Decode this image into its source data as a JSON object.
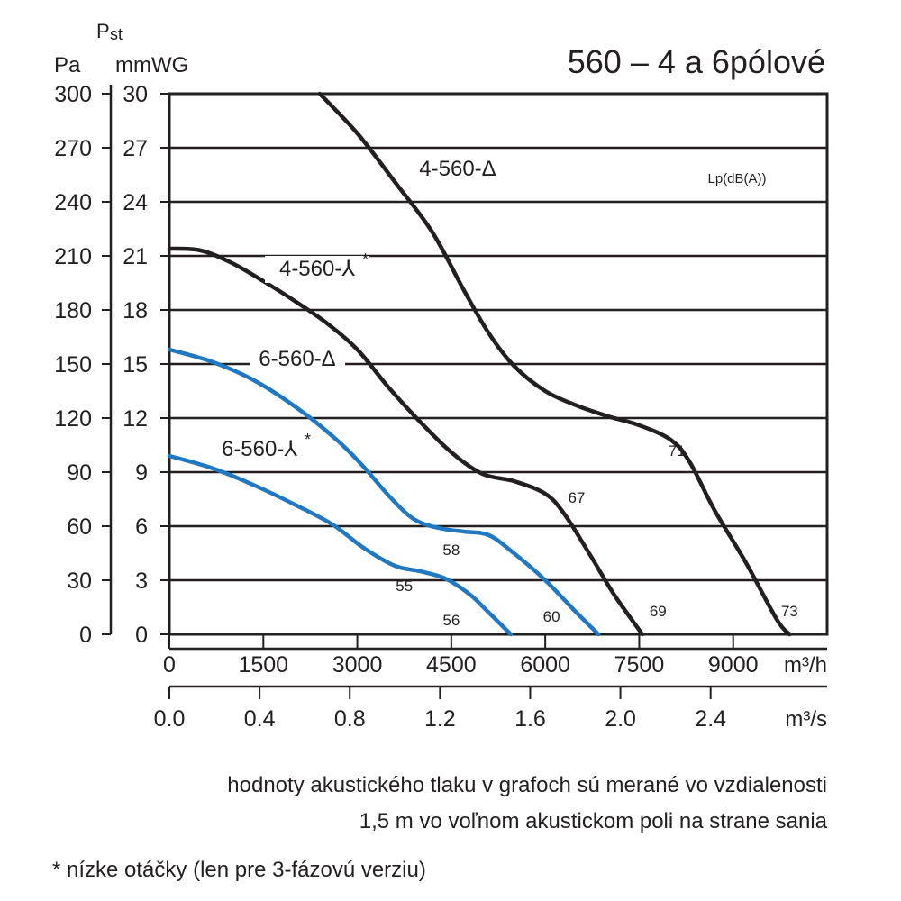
{
  "chart_data": {
    "type": "line",
    "title": "560 – 4 a 6pólové",
    "y_symbol_main": "P",
    "y_symbol_sub": "st",
    "y_left_unit": "Pa",
    "y_right_unit": "mmWG",
    "y_left_ticks": [
      "300",
      "270",
      "240",
      "210",
      "180",
      "150",
      "120",
      "90",
      "60",
      "30",
      "0"
    ],
    "y_right_ticks": [
      "30",
      "27",
      "24",
      "21",
      "18",
      "15",
      "12",
      "9",
      "6",
      "3",
      "0"
    ],
    "ylim_pa": [
      0,
      300
    ],
    "x1_unit": "m³/h",
    "x1_ticks": [
      "0",
      "1500",
      "3000",
      "4500",
      "6000",
      "7500",
      "9000"
    ],
    "xlim_m3h": [
      0,
      10500
    ],
    "x2_unit": "m³/s",
    "x2_ticks": [
      "0.0",
      "0.4",
      "0.8",
      "1.2",
      "1.6",
      "2.0",
      "2.4"
    ],
    "legend_title": "Lp(dB(A))",
    "grid": "horizontal",
    "colors": {
      "black_series": "#231f20",
      "blue_series": "#1f78c1"
    },
    "series": [
      {
        "name": "4-560-Δ",
        "color": "#231f20",
        "x": [
          2400,
          3000,
          3600,
          4200,
          4700,
          5100,
          5500,
          6000,
          6500,
          7000,
          7500,
          8000,
          8300,
          8700,
          9200,
          9700,
          9900
        ],
        "y": [
          300,
          278,
          251,
          223,
          191,
          167,
          149,
          135,
          127,
          121,
          116,
          108,
          96,
          69,
          40,
          8,
          0
        ],
        "annotations": [
          {
            "x": 8100,
            "y": 102,
            "text": "71"
          },
          {
            "x": 9900,
            "y": 13,
            "text": "73"
          }
        ]
      },
      {
        "name": "4-560-⅄",
        "sup": "*",
        "color": "#231f20",
        "x": [
          0,
          500,
          1000,
          1500,
          2000,
          2500,
          3000,
          3500,
          4000,
          4500,
          5000,
          5500,
          6000,
          6300,
          6700,
          7100,
          7550
        ],
        "y": [
          214,
          213,
          206,
          196,
          185,
          173,
          158,
          137,
          118,
          101,
          89,
          85,
          78,
          67,
          45,
          22,
          0
        ],
        "annotations": [
          {
            "x": 6500,
            "y": 76,
            "text": "67"
          },
          {
            "x": 7800,
            "y": 13,
            "text": "69"
          }
        ]
      },
      {
        "name": "6-560-Δ",
        "color": "#1f78c1",
        "x": [
          0,
          700,
          1400,
          2100,
          2700,
          3100,
          3500,
          3900,
          4300,
          4700,
          5100,
          5500,
          6000,
          6500,
          6850
        ],
        "y": [
          158,
          151,
          140,
          124,
          107,
          93,
          77,
          64,
          59,
          57,
          55,
          45,
          30,
          12,
          0
        ],
        "annotations": [
          {
            "x": 4500,
            "y": 47,
            "text": "58"
          },
          {
            "x": 6100,
            "y": 10,
            "text": "60"
          }
        ]
      },
      {
        "name": "6-560-⅄",
        "sup": "*",
        "color": "#1f78c1",
        "x": [
          0,
          700,
          1400,
          2000,
          2600,
          3100,
          3600,
          4000,
          4400,
          4800,
          5100,
          5450
        ],
        "y": [
          99,
          92,
          82,
          72,
          61,
          48,
          38,
          35,
          31,
          22,
          12,
          0
        ],
        "annotations": [
          {
            "x": 3750,
            "y": 27,
            "text": "55"
          },
          {
            "x": 4500,
            "y": 8,
            "text": "56"
          }
        ]
      }
    ]
  },
  "notes": {
    "line1": "hodnoty akustického tlaku v grafoch sú merané vo vzdialenosti",
    "line2": "1,5 m vo voľnom akustickom poli na strane sania",
    "line3": "* nízke otáčky (len pre 3-fázovú verziu)"
  }
}
